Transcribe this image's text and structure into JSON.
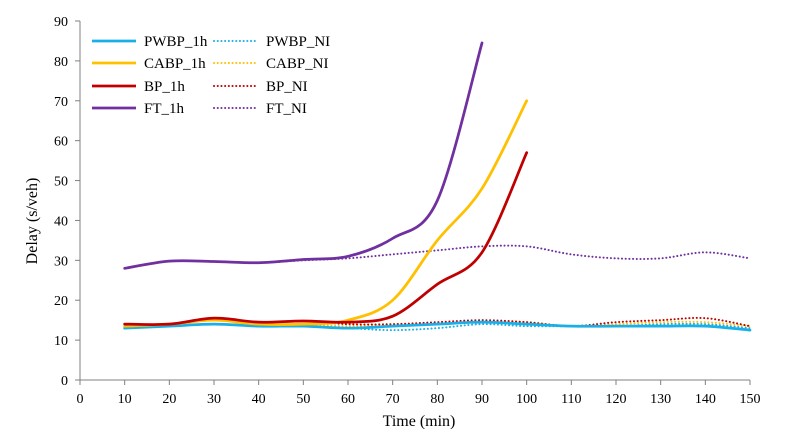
{
  "chart_data": {
    "type": "line",
    "title": "",
    "xlabel": "Time (min)",
    "ylabel": "Delay (s/veh)",
    "xlim": [
      0,
      150
    ],
    "ylim": [
      0,
      90
    ],
    "x_ticks": [
      "0",
      "10",
      "20",
      "30",
      "40",
      "50",
      "60",
      "70",
      "80",
      "90",
      "100",
      "110",
      "120",
      "130",
      "140",
      "150"
    ],
    "y_ticks": [
      "0",
      "10",
      "20",
      "30",
      "40",
      "50",
      "60",
      "70",
      "80",
      "90"
    ],
    "grid": false,
    "legend_position": "top-left",
    "series": [
      {
        "name": "PWBP_1h",
        "color": "#1AAFE6",
        "style": "solid",
        "x": [
          10,
          20,
          30,
          40,
          50,
          60,
          70,
          80,
          90,
          100,
          110,
          120,
          130,
          140,
          150
        ],
        "y": [
          13,
          13.5,
          14,
          13.5,
          13.5,
          13,
          13.5,
          14,
          14.5,
          14,
          13.5,
          13.5,
          13.5,
          13.5,
          12.5
        ]
      },
      {
        "name": "PWBP_NI",
        "color": "#1AAFE6",
        "style": "dotted",
        "x": [
          10,
          20,
          30,
          40,
          50,
          60,
          70,
          80,
          90,
          100,
          110,
          120,
          130,
          140,
          150
        ],
        "y": [
          13,
          13.5,
          14,
          13.5,
          13.5,
          13,
          12.5,
          13,
          14,
          13.5,
          13.5,
          13.5,
          14,
          14,
          13
        ]
      },
      {
        "name": "CABP_1h",
        "color": "#FFC000",
        "style": "solid",
        "x": [
          10,
          20,
          30,
          40,
          50,
          60,
          70,
          80,
          90,
          100
        ],
        "y": [
          13.5,
          14,
          15,
          14,
          14,
          15,
          20,
          35,
          48,
          70
        ]
      },
      {
        "name": "CABP_NI",
        "color": "#FFC000",
        "style": "dotted",
        "x": [
          10,
          20,
          30,
          40,
          50,
          60,
          70,
          80,
          90,
          100,
          110,
          120,
          130,
          140,
          150
        ],
        "y": [
          13.5,
          14,
          15,
          14,
          14,
          13.5,
          14,
          14,
          14.5,
          14.5,
          13.5,
          14,
          14.5,
          14.5,
          13.5
        ]
      },
      {
        "name": "BP_1h",
        "color": "#C00000",
        "style": "solid",
        "x": [
          10,
          20,
          30,
          40,
          50,
          60,
          70,
          80,
          90,
          100
        ],
        "y": [
          14,
          14,
          15.5,
          14.5,
          14.8,
          14.5,
          16,
          24,
          32,
          57
        ]
      },
      {
        "name": "BP_NI",
        "color": "#C00000",
        "style": "dotted",
        "x": [
          10,
          20,
          30,
          40,
          50,
          60,
          70,
          80,
          90,
          100,
          110,
          120,
          130,
          140,
          150
        ],
        "y": [
          14,
          14,
          15.5,
          14.5,
          14.8,
          14,
          14,
          14.5,
          15,
          14.5,
          13.5,
          14.5,
          15,
          15.5,
          13.5
        ]
      },
      {
        "name": "FT_1h",
        "color": "#7030A0",
        "style": "solid",
        "x": [
          10,
          20,
          30,
          40,
          50,
          60,
          70,
          80,
          90
        ],
        "y": [
          28,
          29.8,
          29.7,
          29.4,
          30.2,
          31,
          35.5,
          45,
          84.5
        ]
      },
      {
        "name": "FT_NI",
        "color": "#7030A0",
        "style": "dotted",
        "x": [
          10,
          20,
          30,
          40,
          50,
          60,
          70,
          80,
          90,
          100,
          110,
          120,
          130,
          140,
          150
        ],
        "y": [
          28,
          29.8,
          29.7,
          29.4,
          30,
          30.5,
          31.5,
          32.5,
          33.5,
          33.5,
          31.5,
          30.5,
          30.5,
          32,
          30.5
        ]
      }
    ]
  }
}
